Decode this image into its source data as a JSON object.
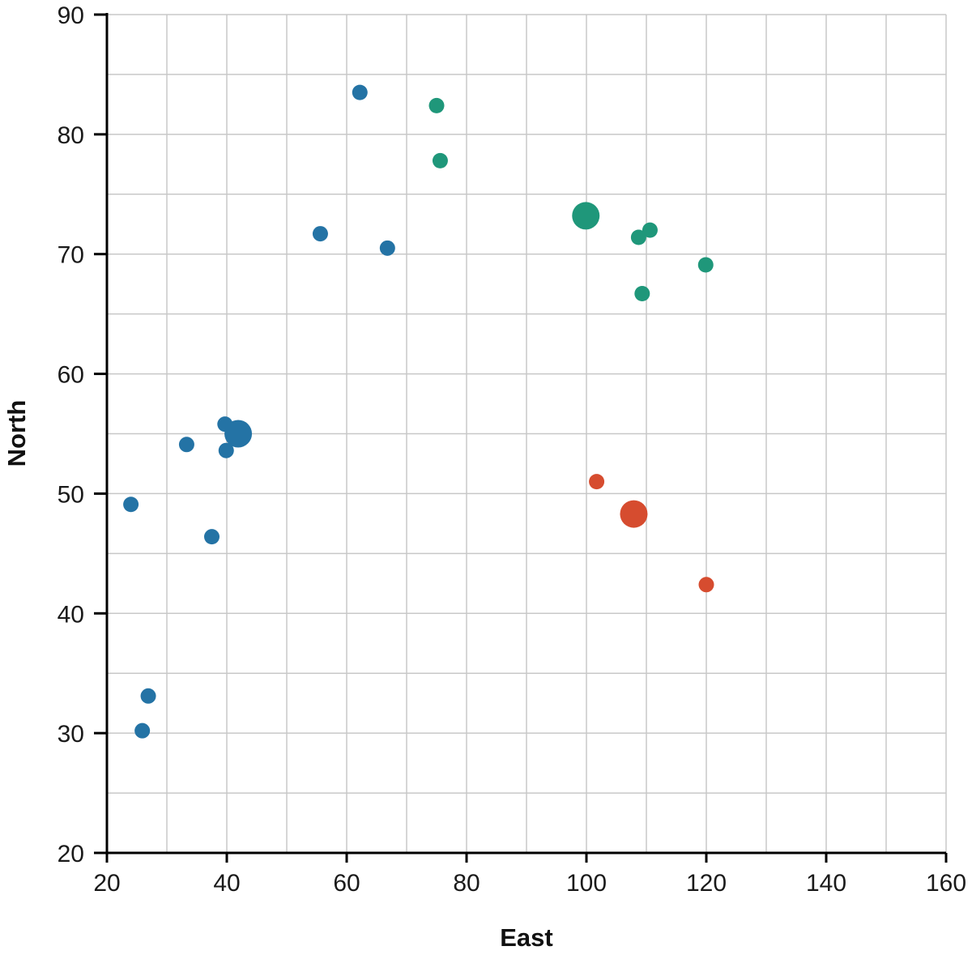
{
  "chart_data": {
    "type": "scatter",
    "title": "",
    "xlabel": "East",
    "ylabel": "North",
    "xlim": [
      20,
      160
    ],
    "ylim": [
      20,
      90
    ],
    "x_ticks": [
      20,
      40,
      60,
      80,
      100,
      120,
      140,
      160
    ],
    "y_ticks": [
      20,
      30,
      40,
      50,
      60,
      70,
      80,
      90
    ],
    "x_minor_step": 10,
    "y_minor_step": 5,
    "grid": true,
    "legend": "none",
    "series": [
      {
        "color": "#2473a5",
        "points": [
          {
            "x": 62.2,
            "y": 83.5,
            "size": "small"
          },
          {
            "x": 55.6,
            "y": 71.7,
            "size": "small"
          },
          {
            "x": 66.8,
            "y": 70.5,
            "size": "small"
          },
          {
            "x": 39.7,
            "y": 55.8,
            "size": "small"
          },
          {
            "x": 41.9,
            "y": 55.0,
            "size": "large"
          },
          {
            "x": 33.3,
            "y": 54.1,
            "size": "small"
          },
          {
            "x": 39.9,
            "y": 53.6,
            "size": "small"
          },
          {
            "x": 24.0,
            "y": 49.1,
            "size": "small"
          },
          {
            "x": 37.5,
            "y": 46.4,
            "size": "small"
          },
          {
            "x": 26.9,
            "y": 33.1,
            "size": "small"
          },
          {
            "x": 25.9,
            "y": 30.2,
            "size": "small"
          }
        ]
      },
      {
        "color": "#1f977a",
        "points": [
          {
            "x": 75.0,
            "y": 82.4,
            "size": "small"
          },
          {
            "x": 75.6,
            "y": 77.8,
            "size": "small"
          },
          {
            "x": 99.9,
            "y": 73.2,
            "size": "large"
          },
          {
            "x": 110.6,
            "y": 72.0,
            "size": "small"
          },
          {
            "x": 108.7,
            "y": 71.4,
            "size": "small"
          },
          {
            "x": 119.9,
            "y": 69.1,
            "size": "small"
          },
          {
            "x": 109.3,
            "y": 66.7,
            "size": "small"
          }
        ]
      },
      {
        "color": "#d64c2f",
        "points": [
          {
            "x": 101.7,
            "y": 51.0,
            "size": "small"
          },
          {
            "x": 107.9,
            "y": 48.3,
            "size": "large"
          },
          {
            "x": 120.0,
            "y": 42.4,
            "size": "small"
          }
        ]
      }
    ]
  }
}
